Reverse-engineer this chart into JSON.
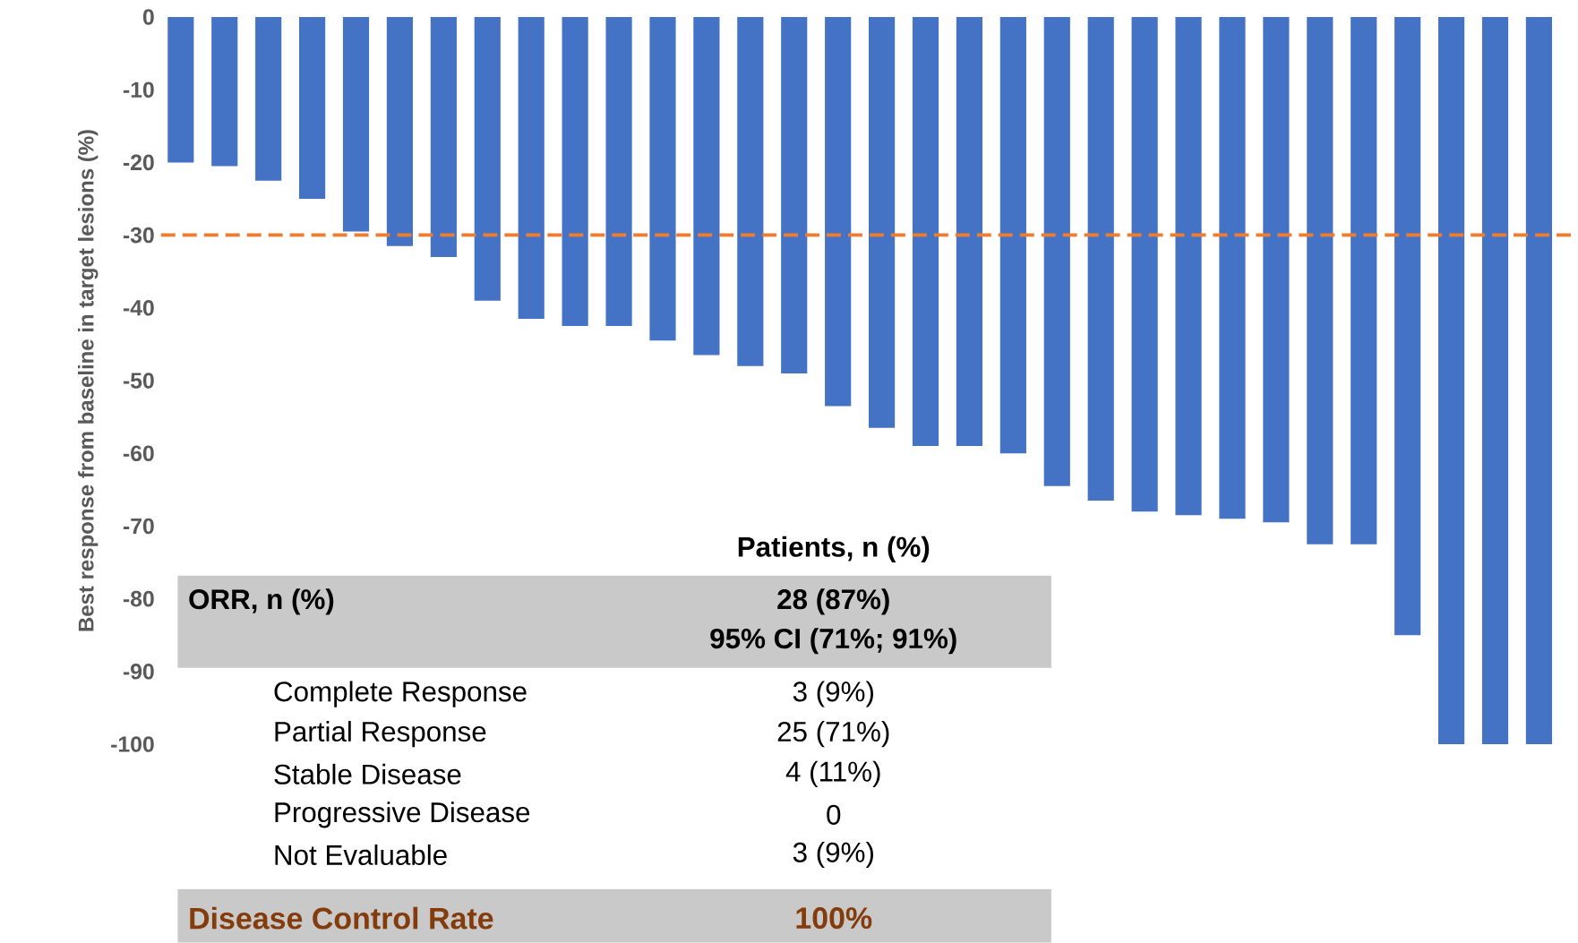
{
  "chart_data": {
    "type": "bar",
    "ylabel": "Best response from baseline in target lesions (%)",
    "categories": [
      null,
      null,
      null,
      null,
      null,
      null,
      null,
      null,
      null,
      null,
      null,
      null,
      null,
      null,
      null,
      null,
      null,
      null,
      null,
      null,
      null,
      null,
      null,
      null,
      null,
      null,
      null,
      null,
      null,
      null,
      null,
      null
    ],
    "values": [
      -20,
      -20.5,
      -22.5,
      -25,
      -29.5,
      -31.5,
      -33,
      -39,
      -41.5,
      -42.5,
      -42.5,
      -44.5,
      -46.5,
      -48,
      -49,
      -53.5,
      -56.5,
      -59,
      -59,
      -60,
      -64.5,
      -66.5,
      -68,
      -68.5,
      -69,
      -69.5,
      -72.5,
      -72.5,
      -85,
      -100,
      -100,
      -100
    ],
    "color": "#4472c4",
    "ylim": [
      -100,
      0
    ],
    "yticks": [
      0,
      -10,
      -20,
      -30,
      -40,
      -50,
      -60,
      -70,
      -80,
      -90,
      -100
    ],
    "ref_lines": [
      {
        "axis": "y",
        "value": -30,
        "color": "#ed7d31",
        "line_style": "dashed"
      }
    ],
    "annotations": [
      "Patients, n (%)",
      "ORR, n (%)",
      "28 (87%)",
      "95% CI (71%; 91%)",
      "Complete Response",
      "3 (9%)",
      "Partial Response",
      "25 (71%)",
      "Stable Disease",
      "4 (11%)",
      "Progressive Disease",
      "0",
      "Not Evaluable",
      "3 (9%)",
      "Disease Control Rate",
      "100%"
    ]
  }
}
